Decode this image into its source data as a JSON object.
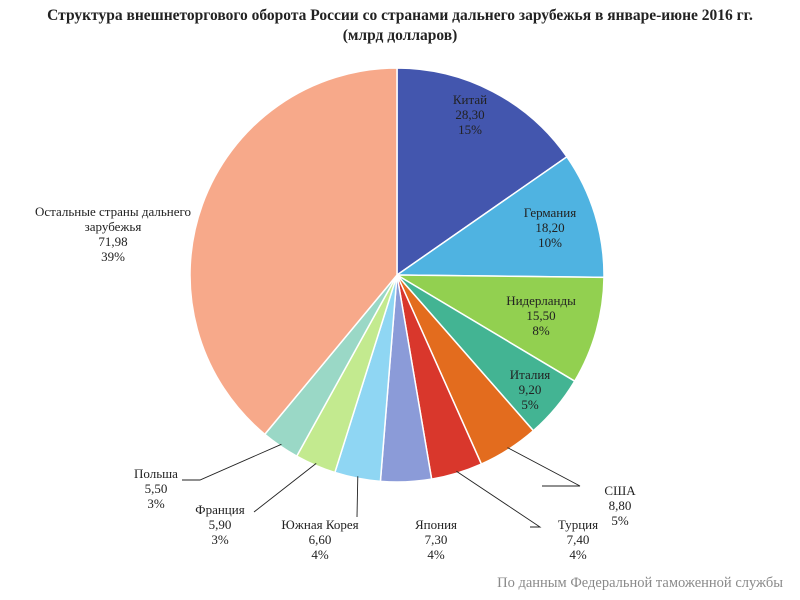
{
  "chart_data": {
    "type": "pie",
    "title_line1": "Структура внешнеторгового оборота России со странами дальнего зарубежья в январе-июне  2016 гг.",
    "title_line2": "(млрд долларов)",
    "slices": [
      {
        "name": "Китай",
        "value": "28,30",
        "num": 28.3,
        "pct": "15%",
        "color": "#4356ae"
      },
      {
        "name": "Германия",
        "value": "18,20",
        "num": 18.2,
        "pct": "10%",
        "color": "#4fb3e1"
      },
      {
        "name": "Нидерланды",
        "value": "15,50",
        "num": 15.5,
        "pct": "8%",
        "color": "#92d050"
      },
      {
        "name": "Италия",
        "value": "9,20",
        "num": 9.2,
        "pct": "5%",
        "color": "#43b493"
      },
      {
        "name": "США",
        "value": "8,80",
        "num": 8.8,
        "pct": "5%",
        "color": "#e36c1e"
      },
      {
        "name": "Турция",
        "value": "7,40",
        "num": 7.4,
        "pct": "4%",
        "color": "#d9372c"
      },
      {
        "name": "Япония",
        "value": "7,30",
        "num": 7.3,
        "pct": "4%",
        "color": "#8b9bd8"
      },
      {
        "name": "Южная Корея",
        "value": "6,60",
        "num": 6.6,
        "pct": "4%",
        "color": "#8fd6f3"
      },
      {
        "name": "Франция",
        "value": "5,90",
        "num": 5.9,
        "pct": "3%",
        "color": "#c3ea8f"
      },
      {
        "name": "Польша",
        "value": "5,50",
        "num": 5.5,
        "pct": "3%",
        "color": "#9ad8c6"
      },
      {
        "name": "Остальные страны дальнего зарубежья",
        "value": "71,98",
        "num": 71.98,
        "pct": "39%",
        "color": "#f7a98a"
      }
    ],
    "source": "По данным Федеральной таможенной службы"
  }
}
